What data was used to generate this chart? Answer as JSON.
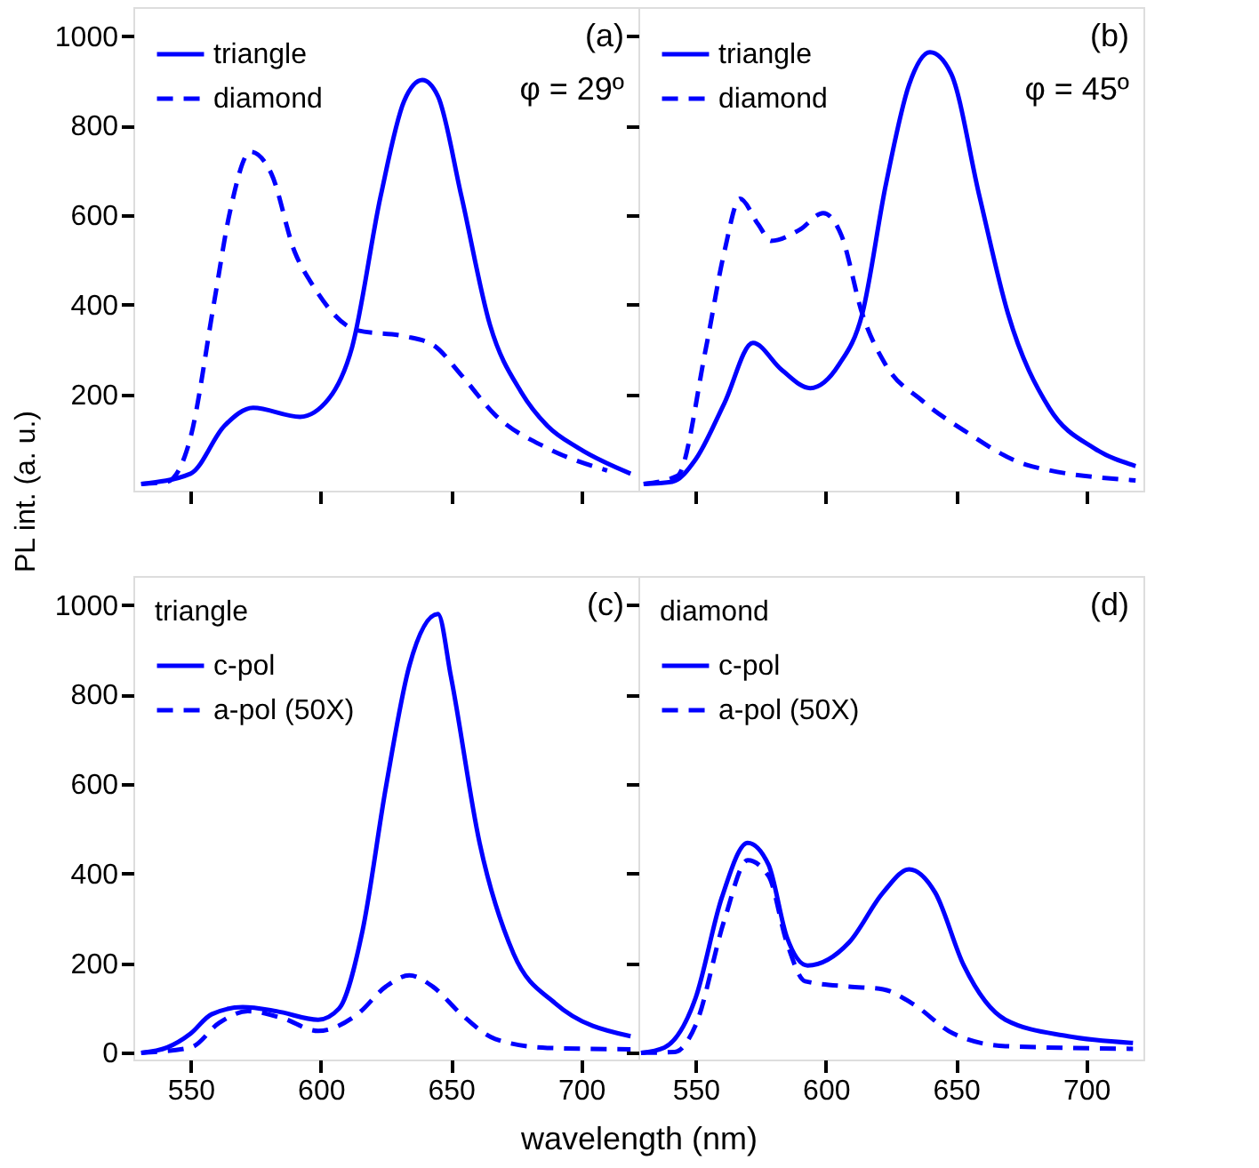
{
  "chart_data": [
    {
      "type": "line",
      "ylabel": "PL int. (a. u.)",
      "xlim": [
        528,
        722
      ],
      "ylim": [
        -15,
        1065
      ],
      "xticks": [
        550,
        600,
        650,
        700
      ],
      "yticks": [
        200,
        400,
        600,
        800,
        1000
      ],
      "tick_labels": "y",
      "grid": false,
      "legend": "top left",
      "marker": "none",
      "annotations": [
        "(a)",
        "φ = 29º"
      ],
      "series": [
        {
          "name": "triangle",
          "color": "#0000ff",
          "line_style": "solid",
          "x": [
            531,
            550,
            563,
            574,
            592,
            603,
            612,
            623,
            632,
            639,
            645,
            654,
            665,
            677,
            687,
            699,
            719
          ],
          "values": [
            0,
            23,
            130,
            170,
            150,
            190,
            305,
            643,
            855,
            902,
            866,
            643,
            355,
            205,
            130,
            80,
            23
          ]
        },
        {
          "name": "diamond",
          "color": "#0000ff",
          "line_style": "dashed",
          "x": [
            531,
            541,
            550,
            559,
            565,
            573,
            581,
            590,
            597,
            614,
            632,
            643,
            654,
            667,
            687,
            710
          ],
          "values": [
            0,
            5,
            105,
            405,
            605,
            742,
            693,
            518,
            443,
            343,
            330,
            311,
            243,
            154,
            80,
            30
          ]
        }
      ]
    },
    {
      "type": "line",
      "xlim": [
        528,
        722
      ],
      "ylim": [
        -15,
        1065
      ],
      "xticks": [
        550,
        600,
        650,
        700
      ],
      "yticks": [
        200,
        400,
        600,
        800,
        1000
      ],
      "tick_labels": false,
      "grid": false,
      "legend": "top left",
      "marker": "none",
      "annotations": [
        "(b)",
        "φ = 45º"
      ],
      "series": [
        {
          "name": "triangle",
          "color": "#0000ff",
          "line_style": "solid",
          "x": [
            530,
            541,
            550,
            561,
            572,
            583,
            594,
            605,
            614,
            623,
            632,
            640,
            648,
            659,
            670,
            686,
            703,
            719
          ],
          "values": [
            0,
            5,
            55,
            180,
            315,
            255,
            214,
            266,
            380,
            667,
            892,
            964,
            918,
            643,
            380,
            168,
            80,
            40
          ]
        },
        {
          "name": "diamond",
          "color": "#0000ff",
          "line_style": "dashed",
          "x": [
            530,
            543,
            554,
            561,
            567,
            574,
            579,
            590,
            599,
            606,
            614,
            623,
            637,
            654,
            677,
            719
          ],
          "values": [
            0,
            18,
            305,
            518,
            637,
            580,
            543,
            568,
            605,
            555,
            380,
            266,
            186,
            116,
            43,
            8
          ]
        }
      ]
    },
    {
      "type": "line",
      "xlabel": "wavelength (nm)",
      "legend_title": "triangle",
      "xlim": [
        528,
        722
      ],
      "ylim": [
        -15,
        1065
      ],
      "xticks": [
        550,
        600,
        650,
        700
      ],
      "yticks": [
        0,
        200,
        400,
        600,
        800,
        1000
      ],
      "grid": false,
      "legend": "top left",
      "marker": "none",
      "annotations": [
        "(c)"
      ],
      "series": [
        {
          "name": "c-pol",
          "color": "#0000ff",
          "line_style": "solid",
          "x": [
            531,
            541,
            550,
            558,
            570,
            583,
            599,
            607,
            616,
            625,
            634,
            645,
            650,
            661,
            674,
            690,
            719
          ],
          "values": [
            0,
            12,
            43,
            86,
            102,
            93,
            74,
            99,
            272,
            593,
            864,
            980,
            840,
            469,
            222,
            111,
            37
          ]
        },
        {
          "name": "a-pol (50X)",
          "color": "#0000ff",
          "line_style": "dashed",
          "x": [
            531,
            550,
            561,
            572,
            585,
            599,
            614,
            625,
            634,
            643,
            654,
            667,
            687,
            719
          ],
          "values": [
            0,
            12,
            67,
            93,
            78,
            49,
            86,
            148,
            173,
            148,
            86,
            31,
            11,
            8
          ]
        }
      ]
    },
    {
      "type": "line",
      "legend_title": "diamond",
      "xlim": [
        528,
        722
      ],
      "ylim": [
        -15,
        1065
      ],
      "xticks": [
        550,
        600,
        650,
        700
      ],
      "yticks": [
        0,
        200,
        400,
        600,
        800,
        1000
      ],
      "tick_labels": "x",
      "grid": false,
      "legend": "top left",
      "marker": "none",
      "annotations": [
        "(d)"
      ],
      "series": [
        {
          "name": "c-pol",
          "color": "#0000ff",
          "line_style": "solid",
          "x": [
            529,
            538,
            550,
            560,
            570,
            578,
            585,
            593,
            609,
            622,
            632,
            642,
            653,
            669,
            693,
            718
          ],
          "values": [
            0,
            12,
            123,
            346,
            469,
            420,
            259,
            195,
            247,
            358,
            410,
            358,
            195,
            74,
            37,
            22
          ]
        },
        {
          "name": "a-pol (50X)",
          "color": "#0000ff",
          "line_style": "dashed",
          "x": [
            529,
            542,
            550,
            561,
            570,
            578,
            585,
            592,
            609,
            622,
            633,
            649,
            669,
            718
          ],
          "values": [
            0,
            2,
            62,
            296,
            430,
            395,
            247,
            160,
            148,
            142,
            111,
            43,
            15,
            9
          ]
        }
      ]
    }
  ]
}
